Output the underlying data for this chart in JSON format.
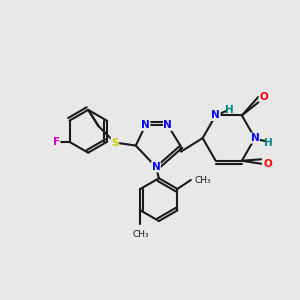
{
  "bg_color": "#e8e8e8",
  "bond_color": "#1a1a1a",
  "bond_lw": 1.5,
  "atom_colors": {
    "N": "#0000ff",
    "O": "#ff0000",
    "F": "#cc00cc",
    "S": "#cccc00",
    "H": "#008888",
    "C": "#1a1a1a"
  },
  "font_size": 7.5,
  "figsize": [
    3.0,
    3.0
  ],
  "dpi": 100
}
